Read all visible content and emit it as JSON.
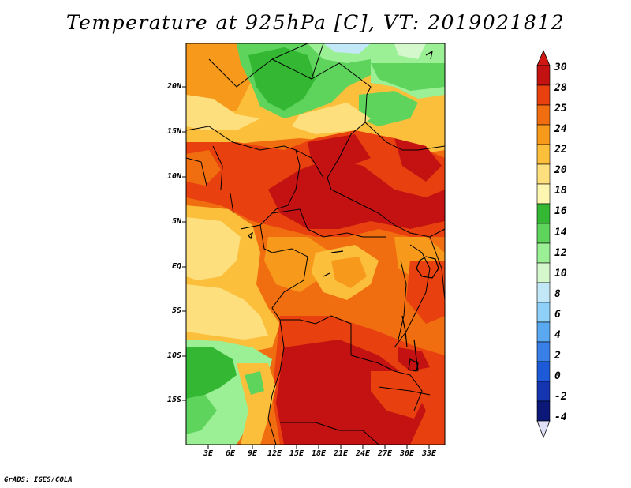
{
  "title": "Temperature at 925hPa [C], VT: 2019021812",
  "credit": "GrADS: IGES/COLA",
  "map": {
    "lat_labels": [
      "20N",
      "15N",
      "10N",
      "5N",
      "EQ",
      "5S",
      "10S",
      "15S"
    ],
    "lon_labels": [
      "3E",
      "6E",
      "9E",
      "12E",
      "15E",
      "18E",
      "21E",
      "24E",
      "27E",
      "30E",
      "33E"
    ]
  },
  "colorbar": {
    "labels": [
      "30",
      "28",
      "25",
      "24",
      "22",
      "20",
      "18",
      "16",
      "14",
      "12",
      "10",
      "8",
      "6",
      "4",
      "2",
      "0",
      "-2",
      "-4"
    ],
    "colors": [
      "#c41212",
      "#e8400e",
      "#f06e10",
      "#f79a1c",
      "#fbbf3c",
      "#fddf7e",
      "#fdf6b0",
      "#34b834",
      "#5ed45c",
      "#9bf096",
      "#d4f8cc",
      "#c2e8f8",
      "#8ed0f8",
      "#5aa8f0",
      "#3880e8",
      "#1c5ad8",
      "#1434b0",
      "#0c1878"
    ],
    "max_tip_color": "#d01812",
    "min_tip_color": "#e0e0f8"
  }
}
